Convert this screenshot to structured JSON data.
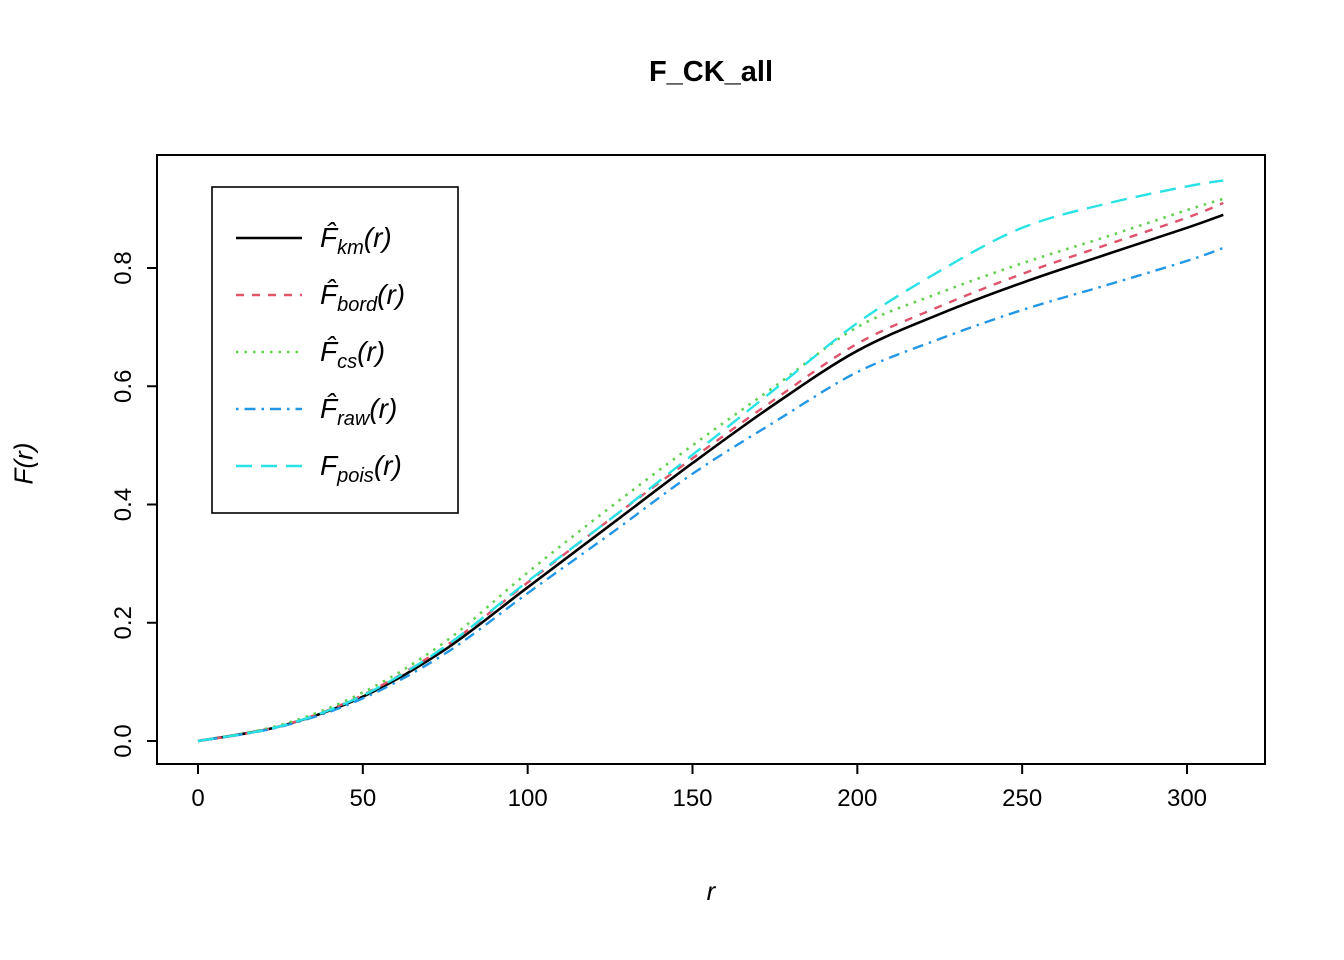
{
  "title": "F_CK_all",
  "axes": {
    "xlabel": "r",
    "ylabel": "F(r)"
  },
  "chart_data": {
    "type": "line",
    "title": "F_CK_all",
    "xlabel": "r",
    "ylabel": "F(r)",
    "xlim": [
      0,
      323
    ],
    "ylim": [
      0,
      0.99
    ],
    "grid": false,
    "legend_position": "top-left",
    "x_ticks": [
      0,
      50,
      100,
      150,
      200,
      250,
      300
    ],
    "x_tick_labels": [
      "0",
      "50",
      "100",
      "150",
      "200",
      "250",
      "300"
    ],
    "y_ticks": [
      0.0,
      0.2,
      0.4,
      0.6,
      0.8
    ],
    "y_tick_labels": [
      "0.0",
      "0.2",
      "0.4",
      "0.6",
      "0.8"
    ],
    "x": [
      0,
      25,
      50,
      75,
      100,
      125,
      150,
      175,
      200,
      225,
      250,
      275,
      300,
      311
    ],
    "series": [
      {
        "name": "km",
        "label": "F̂km(r)",
        "base": "F",
        "hat": true,
        "sub": "km",
        "arg_open": "(",
        "arg_var": "r",
        "arg_close": ")",
        "color": "#000000",
        "linestyle": "solid",
        "dasharray": "",
        "width": 2.6,
        "values": [
          0,
          0.025,
          0.075,
          0.155,
          0.26,
          0.365,
          0.47,
          0.57,
          0.66,
          0.722,
          0.775,
          0.822,
          0.868,
          0.89
        ]
      },
      {
        "name": "bord",
        "label": "F̂bord(r)",
        "base": "F",
        "hat": true,
        "sub": "bord",
        "arg_open": "(",
        "arg_var": "r",
        "arg_close": ")",
        "color": "#DF536B",
        "linestyle": "dashed",
        "dasharray": "8 8",
        "width": 2.4,
        "values": [
          0,
          0.025,
          0.078,
          0.16,
          0.268,
          0.375,
          0.478,
          0.578,
          0.672,
          0.735,
          0.79,
          0.838,
          0.885,
          0.91
        ]
      },
      {
        "name": "cs",
        "label": "F̂cs(r)",
        "base": "F",
        "hat": true,
        "sub": "cs",
        "arg_open": "(",
        "arg_var": "r",
        "arg_close": ")",
        "color": "#61D04F",
        "linestyle": "dotted",
        "dasharray": "2.5 6",
        "width": 2.6,
        "values": [
          0,
          0.027,
          0.082,
          0.168,
          0.285,
          0.395,
          0.5,
          0.6,
          0.7,
          0.758,
          0.808,
          0.852,
          0.898,
          0.917
        ]
      },
      {
        "name": "raw",
        "label": "F̂raw(r)",
        "base": "F",
        "hat": true,
        "sub": "raw",
        "arg_open": "(",
        "arg_var": "r",
        "arg_close": ")",
        "color": "#2297E6",
        "linestyle": "dotdash",
        "dasharray": "2.5 6 11 6",
        "width": 2.4,
        "values": [
          0,
          0.024,
          0.072,
          0.148,
          0.25,
          0.35,
          0.452,
          0.54,
          0.624,
          0.68,
          0.729,
          0.77,
          0.812,
          0.834
        ]
      },
      {
        "name": "pois",
        "label": "Fpois(r)",
        "base": "F",
        "hat": false,
        "sub": "pois",
        "arg_open": "(",
        "arg_var": "r",
        "arg_close": ")",
        "color": "#28E2E5",
        "linestyle": "longdash",
        "dasharray": "16 9",
        "width": 2.4,
        "values": [
          0,
          0.025,
          0.077,
          0.16,
          0.27,
          0.375,
          0.484,
          0.595,
          0.707,
          0.795,
          0.868,
          0.908,
          0.938,
          0.948
        ]
      }
    ]
  },
  "colors": {
    "foreground": "#000000",
    "background": "#ffffff",
    "series_black": "#000000",
    "series_red": "#DF536B",
    "series_green": "#61D04F",
    "series_blue": "#2297E6",
    "series_cyan": "#28E2E5"
  }
}
